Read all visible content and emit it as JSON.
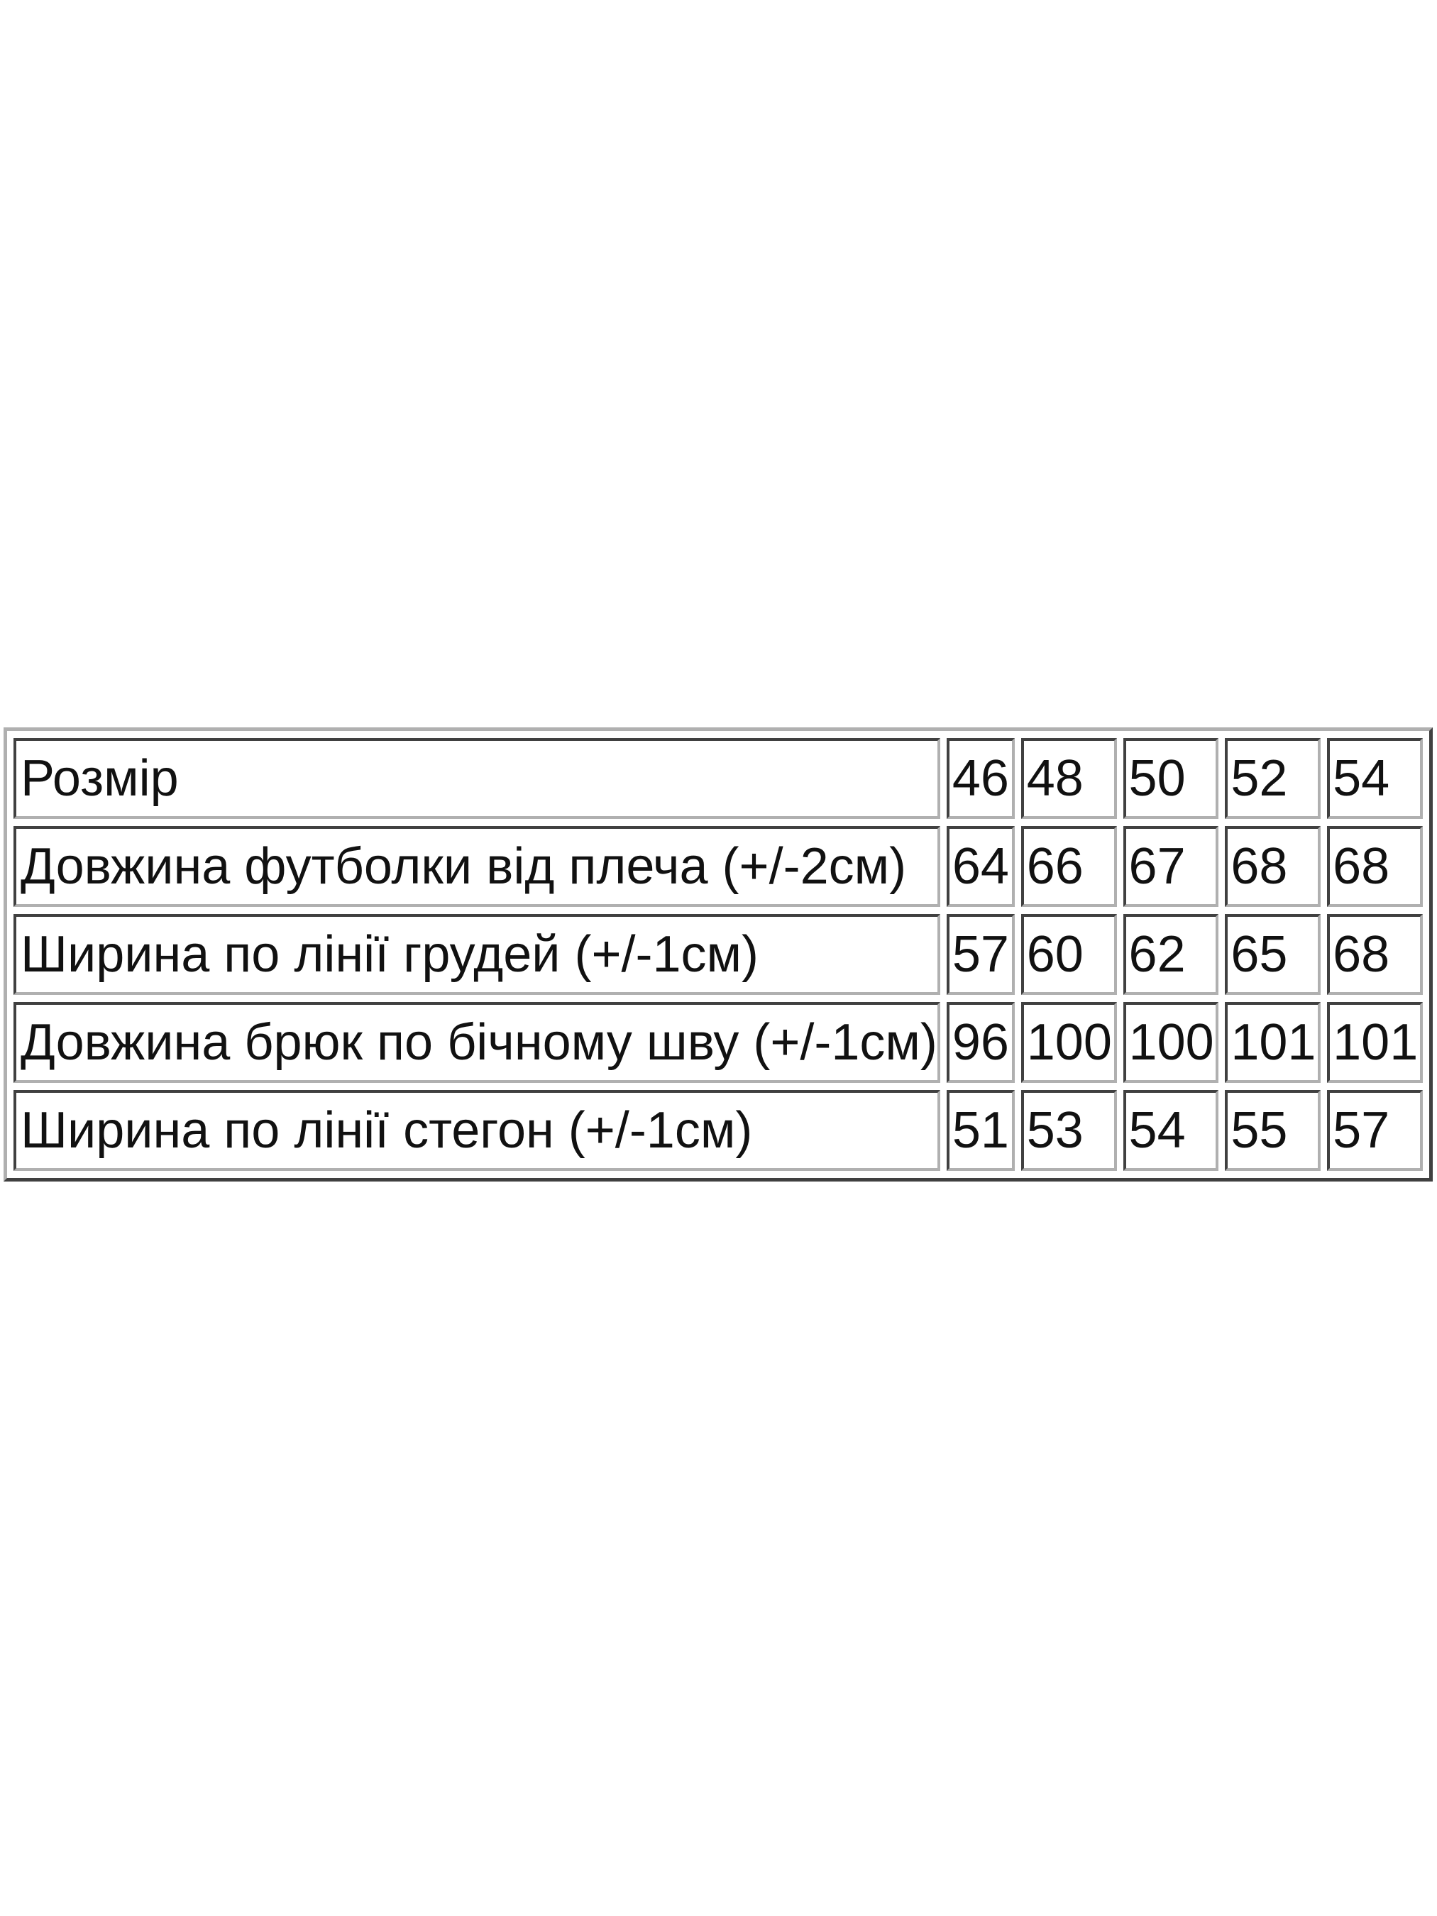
{
  "size_table": {
    "rows": [
      {
        "label": "Розмір",
        "values": [
          "46",
          "48",
          "50",
          "52",
          "54"
        ]
      },
      {
        "label": "Довжина футболки від плеча (+/-2см)",
        "values": [
          "64",
          "66",
          "67",
          "68",
          "68"
        ]
      },
      {
        "label": "Ширина по лінії грудей (+/-1см)",
        "values": [
          "57",
          "60",
          "62",
          "65",
          "68"
        ]
      },
      {
        "label": "Довжина брюк по бічному шву (+/-1см)",
        "values": [
          "96",
          "100",
          "100",
          "101",
          "101"
        ]
      },
      {
        "label": "Ширина по лінії стегон (+/-1см)",
        "values": [
          "51",
          "53",
          "54",
          "55",
          "57"
        ]
      }
    ]
  }
}
